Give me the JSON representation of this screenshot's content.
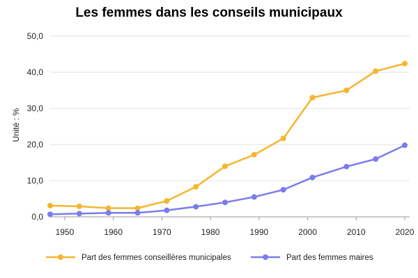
{
  "chart_data": {
    "type": "line",
    "title": "Les femmes dans les conseils municipaux",
    "xlabel": "",
    "ylabel": "Unité : %",
    "xlim": [
      1947,
      2021
    ],
    "ylim": [
      0,
      50
    ],
    "x_ticks": [
      1950,
      1960,
      1970,
      1980,
      1990,
      2000,
      2010,
      2020
    ],
    "y_ticks": [
      0,
      10,
      20,
      30,
      40,
      50
    ],
    "y_tick_labels": [
      "0,0",
      "10,0",
      "20,0",
      "30,0",
      "40,0",
      "50,0"
    ],
    "grid": "horizontal",
    "legend_position": "bottom",
    "series": [
      {
        "name": "Part des femmes conseillères municipales",
        "color": "#F5B52E",
        "points": [
          {
            "x": 1947,
            "y": 3.1
          },
          {
            "x": 1953,
            "y": 2.9
          },
          {
            "x": 1959,
            "y": 2.4
          },
          {
            "x": 1965,
            "y": 2.4
          },
          {
            "x": 1971,
            "y": 4.4
          },
          {
            "x": 1977,
            "y": 8.3
          },
          {
            "x": 1983,
            "y": 14.0
          },
          {
            "x": 1989,
            "y": 17.2
          },
          {
            "x": 1995,
            "y": 21.7
          },
          {
            "x": 2001,
            "y": 33.0
          },
          {
            "x": 2008,
            "y": 35.0
          },
          {
            "x": 2014,
            "y": 40.3
          },
          {
            "x": 2020,
            "y": 42.4
          }
        ]
      },
      {
        "name": "Part des femmes maires",
        "color": "#7B7BEE",
        "points": [
          {
            "x": 1947,
            "y": 0.7
          },
          {
            "x": 1953,
            "y": 0.9
          },
          {
            "x": 1959,
            "y": 1.1
          },
          {
            "x": 1965,
            "y": 1.1
          },
          {
            "x": 1971,
            "y": 1.8
          },
          {
            "x": 1977,
            "y": 2.8
          },
          {
            "x": 1983,
            "y": 4.0
          },
          {
            "x": 1989,
            "y": 5.5
          },
          {
            "x": 1995,
            "y": 7.5
          },
          {
            "x": 2001,
            "y": 10.9
          },
          {
            "x": 2008,
            "y": 13.9
          },
          {
            "x": 2014,
            "y": 16.0
          },
          {
            "x": 2020,
            "y": 19.8
          }
        ]
      }
    ]
  }
}
